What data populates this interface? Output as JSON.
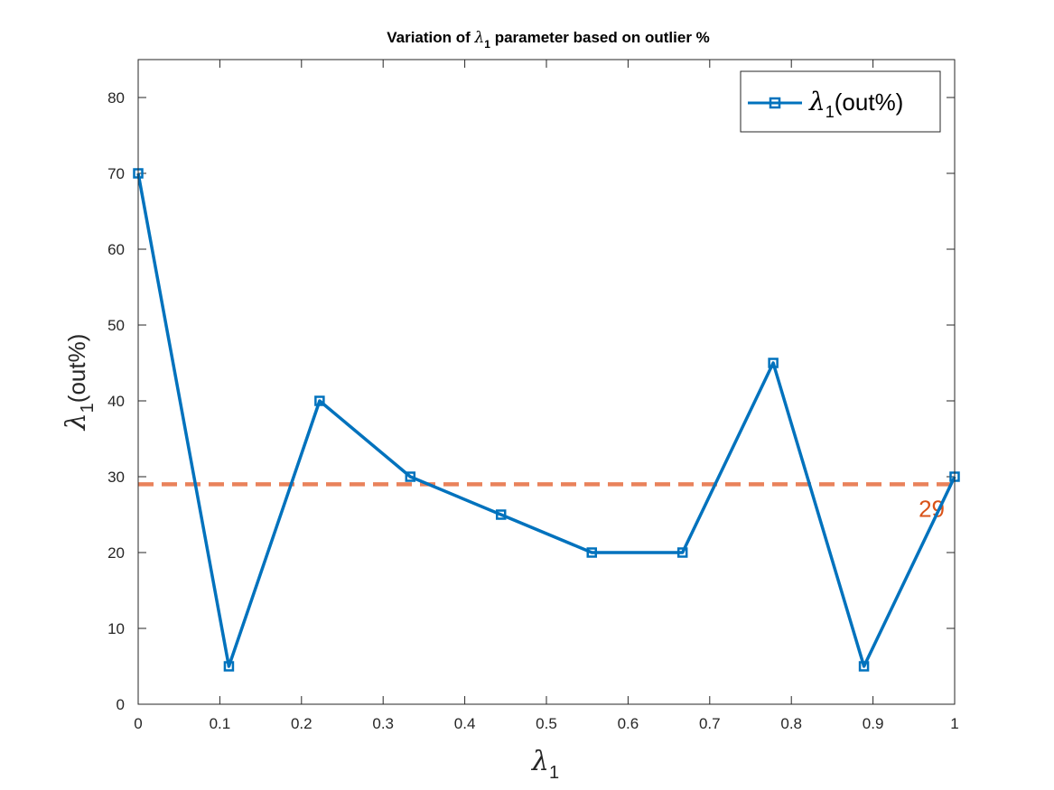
{
  "chart_data": {
    "type": "line",
    "title": {
      "before": "Variation of ",
      "symbol": "λ",
      "subscript": "1",
      "after": " parameter based on outlier %"
    },
    "xlabel": {
      "symbol": "λ",
      "subscript": "1"
    },
    "ylabel": {
      "symbol": "λ",
      "subscript": "1",
      "rest": "(out%)"
    },
    "xlim": [
      0,
      1
    ],
    "ylim": [
      0,
      85
    ],
    "xticks": [
      0,
      0.1,
      0.2,
      0.3,
      0.4,
      0.5,
      0.6,
      0.7,
      0.8,
      0.9,
      1
    ],
    "xtick_labels": [
      "0",
      "0.1",
      "0.2",
      "0.3",
      "0.4",
      "0.5",
      "0.6",
      "0.7",
      "0.8",
      "0.9",
      "1"
    ],
    "yticks": [
      0,
      10,
      20,
      30,
      40,
      50,
      60,
      70,
      80
    ],
    "ytick_labels": [
      "0",
      "10",
      "20",
      "30",
      "40",
      "50",
      "60",
      "70",
      "80"
    ],
    "grid": false,
    "legend_position": "top-right",
    "series": [
      {
        "name": {
          "symbol": "λ",
          "subscript": "1",
          "rest": "(out%)"
        },
        "color": "#0072BD",
        "marker": "square",
        "x": [
          0,
          0.1111,
          0.2222,
          0.3333,
          0.4444,
          0.5556,
          0.6667,
          0.7778,
          0.8889,
          1
        ],
        "y": [
          70,
          5,
          40,
          30,
          25,
          20,
          20,
          45,
          5,
          30
        ]
      }
    ],
    "reference_line": {
      "y": 29,
      "label": "29",
      "style": "dashed",
      "color": "#E9825B",
      "label_color": "#D95319"
    }
  }
}
